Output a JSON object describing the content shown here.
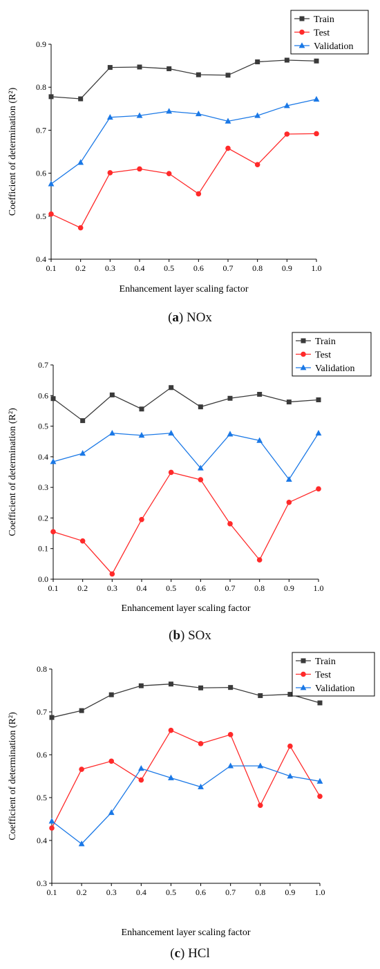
{
  "chart_data": [
    {
      "type": "line",
      "panel_label": "a",
      "caption_text": "NOx",
      "xlabel": "Enhancement layer scaling factor",
      "ylabel": "Coefficient of determination (R²)",
      "x": [
        0.1,
        0.2,
        0.3,
        0.4,
        0.5,
        0.6,
        0.7,
        0.8,
        0.9,
        1.0
      ],
      "xticks": [
        "0.1",
        "0.2",
        "0.3",
        "0.4",
        "0.5",
        "0.6",
        "0.7",
        "0.8",
        "0.9",
        "1.0"
      ],
      "xlim": [
        0.1,
        1.0
      ],
      "ylim": [
        0.4,
        0.9
      ],
      "yticks": [
        "0.4",
        "0.5",
        "0.6",
        "0.7",
        "0.8",
        "0.9"
      ],
      "ytick_values": [
        0.4,
        0.5,
        0.6,
        0.7,
        0.8,
        0.9
      ],
      "legend_position": "top-right",
      "series": [
        {
          "name": "Train",
          "color": "#3a3a3a",
          "marker": "square",
          "values": [
            0.778,
            0.773,
            0.846,
            0.847,
            0.843,
            0.829,
            0.828,
            0.859,
            0.863,
            0.861
          ]
        },
        {
          "name": "Test",
          "color": "#ff2a2a",
          "marker": "circle",
          "values": [
            0.505,
            0.473,
            0.601,
            0.61,
            0.599,
            0.552,
            0.658,
            0.62,
            0.691,
            0.692
          ]
        },
        {
          "name": "Validation",
          "color": "#1a78e6",
          "marker": "triangle",
          "values": [
            0.575,
            0.625,
            0.73,
            0.734,
            0.744,
            0.738,
            0.721,
            0.734,
            0.757,
            0.772
          ]
        }
      ]
    },
    {
      "type": "line",
      "panel_label": "b",
      "caption_text": "SOx",
      "xlabel": "Enhancement layer scaling factor",
      "ylabel": "Coefficient of determination (R²)",
      "x": [
        0.1,
        0.2,
        0.3,
        0.4,
        0.5,
        0.6,
        0.7,
        0.8,
        0.9,
        1.0
      ],
      "xticks": [
        "0.1",
        "0.2",
        "0.3",
        "0.4",
        "0.5",
        "0.6",
        "0.7",
        "0.8",
        "0.9",
        "1.0"
      ],
      "xlim": [
        0.1,
        1.0
      ],
      "ylim": [
        0.0,
        0.7
      ],
      "yticks": [
        "0.0",
        "0.1",
        "0.2",
        "0.3",
        "0.4",
        "0.5",
        "0.6",
        "0.7"
      ],
      "ytick_values": [
        0.0,
        0.1,
        0.2,
        0.3,
        0.4,
        0.5,
        0.6,
        0.7
      ],
      "legend_position": "top-right",
      "series": [
        {
          "name": "Train",
          "color": "#3a3a3a",
          "marker": "square",
          "values": [
            0.59,
            0.518,
            0.602,
            0.556,
            0.626,
            0.563,
            0.591,
            0.604,
            0.579,
            0.586
          ]
        },
        {
          "name": "Test",
          "color": "#ff2a2a",
          "marker": "circle",
          "values": [
            0.155,
            0.125,
            0.017,
            0.195,
            0.349,
            0.325,
            0.181,
            0.063,
            0.251,
            0.295
          ]
        },
        {
          "name": "Validation",
          "color": "#1a78e6",
          "marker": "triangle",
          "values": [
            0.384,
            0.411,
            0.477,
            0.47,
            0.477,
            0.363,
            0.474,
            0.453,
            0.326,
            0.477
          ]
        }
      ]
    },
    {
      "type": "line",
      "panel_label": "c",
      "caption_text": "HCl",
      "xlabel": "Enhancement layer scaling factor",
      "ylabel": "Coefficient of determination (R²)",
      "x": [
        0.1,
        0.2,
        0.3,
        0.4,
        0.5,
        0.6,
        0.7,
        0.8,
        0.9,
        1.0
      ],
      "xticks": [
        "0.1",
        "0.2",
        "0.3",
        "0.4",
        "0.5",
        "0.6",
        "0.7",
        "0.8",
        "0.9",
        "1.0"
      ],
      "xlim": [
        0.1,
        1.0
      ],
      "ylim": [
        0.3,
        0.8
      ],
      "yticks": [
        "0.3",
        "0.4",
        "0.5",
        "0.6",
        "0.7",
        "0.8"
      ],
      "ytick_values": [
        0.3,
        0.4,
        0.5,
        0.6,
        0.7,
        0.8
      ],
      "legend_position": "top-right",
      "series": [
        {
          "name": "Train",
          "color": "#3a3a3a",
          "marker": "square",
          "values": [
            0.687,
            0.703,
            0.74,
            0.761,
            0.765,
            0.756,
            0.757,
            0.738,
            0.741,
            0.721
          ]
        },
        {
          "name": "Test",
          "color": "#ff2a2a",
          "marker": "circle",
          "values": [
            0.429,
            0.566,
            0.585,
            0.541,
            0.657,
            0.626,
            0.647,
            0.482,
            0.62,
            0.503
          ]
        },
        {
          "name": "Validation",
          "color": "#1a78e6",
          "marker": "triangle",
          "values": [
            0.445,
            0.392,
            0.465,
            0.568,
            0.546,
            0.525,
            0.574,
            0.574,
            0.55,
            0.538
          ]
        }
      ]
    }
  ]
}
